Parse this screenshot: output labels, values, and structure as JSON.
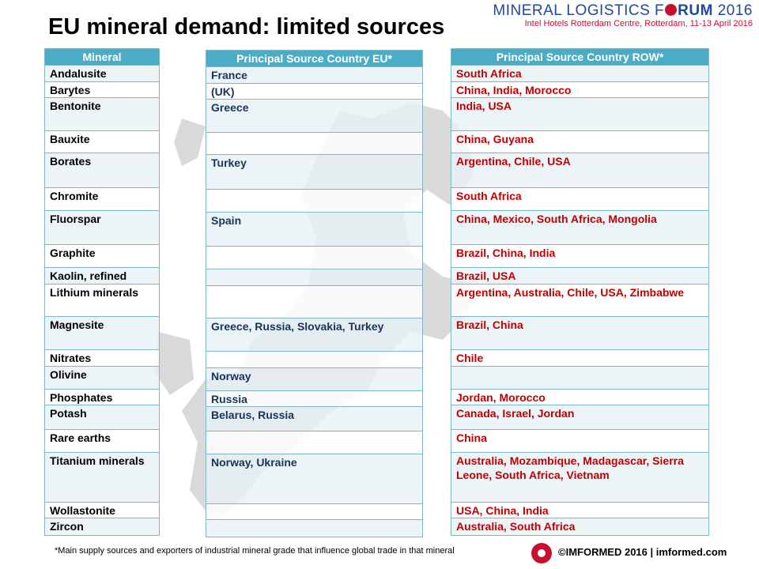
{
  "header": {
    "title": "EU mineral demand: limited sources",
    "logo_line1_a": "MINERAL LOGISTICS F",
    "logo_line1_b": "RUM",
    "logo_line1_c": " 2016",
    "logo_line2": "Intel Hotels Rotterdam Centre, Rotterdam, 11-13 April 2016"
  },
  "tables": {
    "mineral_header": "Mineral",
    "eu_header": "Principal Source Country EU*",
    "row_header": "Principal Source Country ROW*"
  },
  "rows": [
    {
      "mineral": "Andalusite",
      "eu": "France",
      "row": "South Africa"
    },
    {
      "mineral": "Barytes",
      "eu": "(UK)",
      "row": "China, India, Morocco"
    },
    {
      "mineral": "Bentonite",
      "eu": "Greece",
      "row": "India, USA"
    },
    {
      "mineral": "Bauxite",
      "eu": "",
      "row": "China, Guyana"
    },
    {
      "mineral": "Borates",
      "eu": "Turkey",
      "row": "Argentina, Chile, USA"
    },
    {
      "mineral": "Chromite",
      "eu": "",
      "row": "South Africa"
    },
    {
      "mineral": "Fluorspar",
      "eu": "Spain",
      "row": "China, Mexico, South Africa, Mongolia"
    },
    {
      "mineral": "Graphite",
      "eu": "",
      "row": "Brazil, China, India"
    },
    {
      "mineral": "Kaolin, refined",
      "eu": "",
      "row": "Brazil, USA"
    },
    {
      "mineral": "Lithium minerals",
      "eu": "",
      "row": "Argentina, Australia, Chile, USA, Zimbabwe"
    },
    {
      "mineral": "Magnesite",
      "eu": "Greece, Russia, Slovakia, Turkey",
      "row": "Brazil, China"
    },
    {
      "mineral": "Nitrates",
      "eu": "",
      "row": "Chile"
    },
    {
      "mineral": "Olivine",
      "eu": "Norway",
      "row": ""
    },
    {
      "mineral": "Phosphates",
      "eu": "Russia",
      "row": "Jordan, Morocco"
    },
    {
      "mineral": "Potash",
      "eu": "Belarus, Russia",
      "row": "Canada, Israel, Jordan"
    },
    {
      "mineral": "Rare earths",
      "eu": "",
      "row": "China"
    },
    {
      "mineral": "Titanium minerals",
      "eu": "Norway, Ukraine",
      "row": "Australia, Mozambique, Madagascar, Sierra Leone, South Africa, Vietnam"
    },
    {
      "mineral": "Wollastonite",
      "eu": "",
      "row": "USA, China, India"
    },
    {
      "mineral": "Zircon",
      "eu": "",
      "row": "Australia, South Africa"
    }
  ],
  "footer": {
    "note": "*Main supply sources and exporters of industrial mineral grade that influence global trade in that mineral",
    "brand": "©IMFORMED 2016  | imformed.com"
  },
  "colors": {
    "header_bg": "#4bacc6",
    "eu_text": "#17345a",
    "row_text": "#c00000",
    "logo_blue": "#22489a",
    "logo_red": "#c8102e"
  }
}
